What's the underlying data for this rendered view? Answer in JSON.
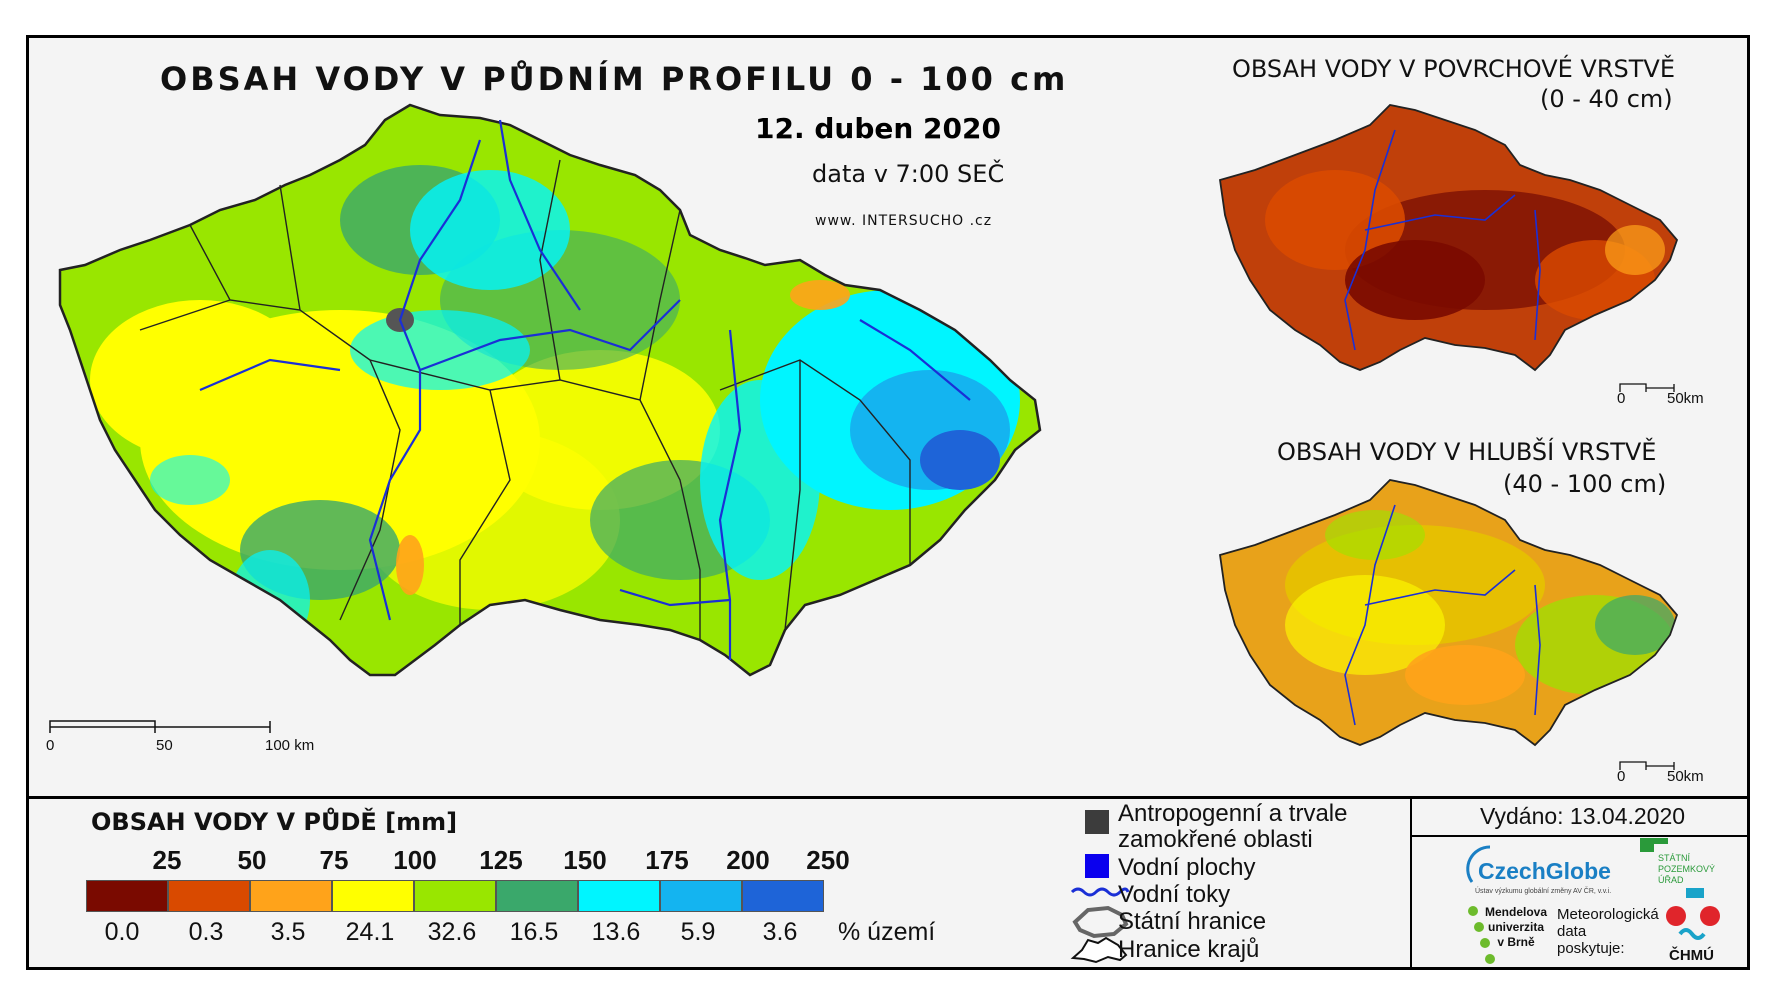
{
  "main_map": {
    "title": "OBSAH VODY V PŮDNÍM PROFILU 0 - 100 cm",
    "date": "12. duben 2020",
    "time": "data v 7:00 SEČ",
    "website": {
      "prefix": "www.",
      "middle": "INTERSUCHO",
      "suffix": ".cz"
    },
    "scalebar": {
      "ticks": [
        "0",
        "50",
        "100 km"
      ]
    }
  },
  "inset_top": {
    "title_line1": "OBSAH VODY V POVRCHOVÉ VRSTVĚ",
    "title_line2": "(0 - 40 cm)",
    "scalebar": {
      "ticks": [
        "0",
        "50km"
      ]
    }
  },
  "inset_bottom": {
    "title_line1": "OBSAH VODY V HLUBŠÍ VRSTVĚ",
    "title_line2": "(40 - 100 cm)",
    "scalebar": {
      "ticks": [
        "0",
        "50km"
      ]
    }
  },
  "legend": {
    "title": "OBSAH VODY V PŮDĚ [mm]",
    "scale_values": [
      "25",
      "50",
      "75",
      "100",
      "125",
      "150",
      "175",
      "200",
      "250"
    ],
    "classes": [
      {
        "color": "#7a0a00",
        "percent": "0.0"
      },
      {
        "color": "#d94a00",
        "percent": "0.3"
      },
      {
        "color": "#ffa31a",
        "percent": "3.5"
      },
      {
        "color": "#ffff00",
        "percent": "24.1"
      },
      {
        "color": "#99e600",
        "percent": "32.6"
      },
      {
        "color": "#3aa86b",
        "percent": "16.5"
      },
      {
        "color": "#00f5ff",
        "percent": "13.6"
      },
      {
        "color": "#14b4f0",
        "percent": "5.9"
      },
      {
        "color": "#1e64d8",
        "percent": "3.6"
      }
    ],
    "percent_unit": "% území",
    "symbols": [
      {
        "icon": "dark-gray-square",
        "label_line1": "Antropogenní a trvale",
        "label_line2": "zamokřené oblasti"
      },
      {
        "icon": "blue-square",
        "label": "Vodní plochy"
      },
      {
        "icon": "river-line",
        "label": "Vodní toky"
      },
      {
        "icon": "state-border-outline",
        "label": "Státní hranice"
      },
      {
        "icon": "region-border-outline",
        "label": "Hranice krajů"
      }
    ]
  },
  "issued": "Vydáno: 13.04.2020",
  "logos": {
    "czechglobe": "CzechGlobe",
    "czechglobe_sub": "Ústav výzkumu globální změny AV ČR, v.v.i.",
    "spu": [
      "STÁTNÍ",
      "POZEMKOVÝ",
      "ÚŘAD"
    ],
    "mendel": [
      "Mendelova",
      "univerzita",
      "v Brně"
    ],
    "meteo": [
      "Meteorologická",
      "data",
      "poskytuje:"
    ],
    "chmu": "ČHMÚ"
  },
  "colors": {
    "main_map_dominant": [
      "#99e600",
      "#ffff00",
      "#3aa86b",
      "#00f5ff",
      "#14b4f0",
      "#1e64d8"
    ],
    "inset_top_dominant": [
      "#7a0a00",
      "#c0400a",
      "#d94a00"
    ],
    "inset_bottom_dominant": [
      "#ffa31a",
      "#e6c200",
      "#99e600"
    ]
  }
}
